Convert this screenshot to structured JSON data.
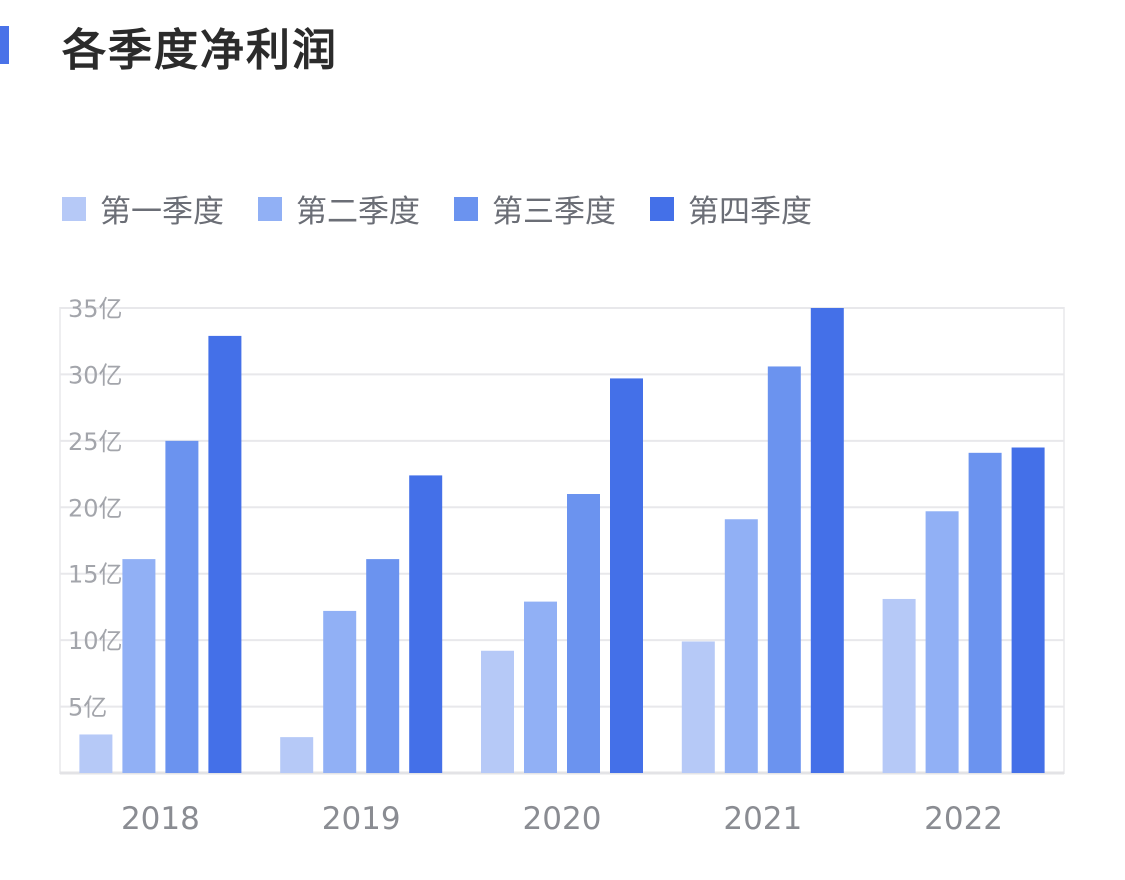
{
  "page": {
    "title": "各季度净利润",
    "accent_color": "#4a72e8"
  },
  "chart_data": {
    "type": "bar",
    "title": "各季度净利润",
    "categories": [
      "2018",
      "2019",
      "2020",
      "2021",
      "2022"
    ],
    "series": [
      {
        "name": "第一季度",
        "color": "#b6c9f7",
        "values": [
          2.9,
          2.7,
          9.2,
          9.9,
          13.1
        ]
      },
      {
        "name": "第二季度",
        "color": "#91b0f5",
        "values": [
          16.1,
          12.2,
          12.9,
          19.1,
          19.7
        ]
      },
      {
        "name": "第三季度",
        "color": "#6b93ef",
        "values": [
          25.0,
          16.1,
          21.0,
          30.6,
          24.1
        ]
      },
      {
        "name": "第四季度",
        "color": "#4470e8",
        "values": [
          32.9,
          22.4,
          29.7,
          35.0,
          24.5
        ]
      }
    ],
    "ylim": [
      0,
      35
    ],
    "yticks": [
      {
        "value": 5,
        "label": "5亿"
      },
      {
        "value": 10,
        "label": "10亿"
      },
      {
        "value": 15,
        "label": "15亿"
      },
      {
        "value": 20,
        "label": "20亿"
      },
      {
        "value": 25,
        "label": "25亿"
      },
      {
        "value": 30,
        "label": "30亿"
      },
      {
        "value": 35,
        "label": "35亿"
      }
    ],
    "grid": true,
    "legend_position": "top-left"
  }
}
